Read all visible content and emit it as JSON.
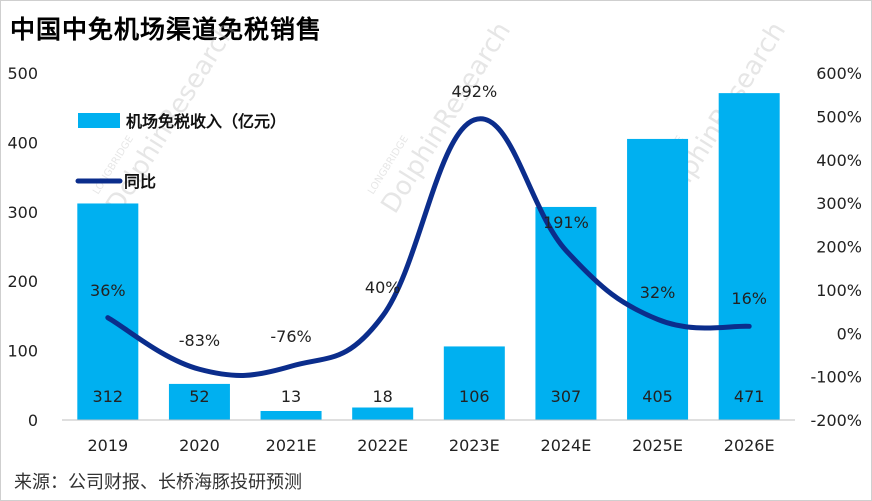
{
  "title": "中国中免机场渠道免税销售",
  "source": "来源：公司财报、长桥海豚投研预测",
  "watermark": {
    "brand": "LONGBRIDGE",
    "text": "DolphinResearch"
  },
  "colors": {
    "bar": "#00b0f0",
    "line": "#0b2d8c"
  },
  "chart_data": {
    "type": "bar",
    "categories": [
      "2019",
      "2020",
      "2021E",
      "2022E",
      "2023E",
      "2024E",
      "2025E",
      "2026E"
    ],
    "series": [
      {
        "name": "机场免税收入（亿元）",
        "type": "bar",
        "axis": "left",
        "values": [
          312,
          52,
          13,
          18,
          106,
          307,
          405,
          471
        ],
        "labels": [
          "312",
          "52",
          "13",
          "18",
          "106",
          "307",
          "405",
          "471"
        ]
      },
      {
        "name": "同比",
        "type": "line",
        "axis": "right",
        "values": [
          36,
          -83,
          -76,
          40,
          492,
          191,
          32,
          16
        ],
        "labels": [
          "36%",
          "-83%",
          "-76%",
          "40%",
          "492%",
          "191%",
          "32%",
          "16%"
        ]
      }
    ],
    "y_left": {
      "min": 0,
      "max": 500,
      "ticks": [
        "0",
        "100",
        "200",
        "300",
        "400",
        "500"
      ]
    },
    "y_right": {
      "min": -200,
      "max": 600,
      "ticks": [
        "-200%",
        "-100%",
        "0%",
        "100%",
        "200%",
        "300%",
        "400%",
        "500%",
        "600%"
      ]
    },
    "legend_position": "top-left",
    "grid": false
  }
}
